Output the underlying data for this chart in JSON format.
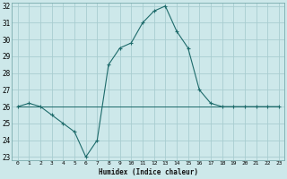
{
  "xlabel": "Humidex (Indice chaleur)",
  "background_color": "#cde8ea",
  "grid_color": "#a8cdd0",
  "line_color": "#1e6b6b",
  "hours": [
    0,
    1,
    2,
    3,
    4,
    5,
    6,
    7,
    8,
    9,
    10,
    11,
    12,
    13,
    14,
    15,
    16,
    17,
    18,
    19,
    20,
    21,
    22,
    23
  ],
  "series_ref1": [
    26,
    26,
    26,
    26,
    26,
    26,
    26,
    26,
    26,
    26,
    26,
    26,
    26,
    26,
    26,
    26,
    26,
    26,
    26,
    26,
    26,
    26,
    26,
    26
  ],
  "series_ref2": [
    26,
    26,
    26,
    26,
    26,
    26,
    26,
    26,
    26,
    26,
    26,
    26,
    26,
    26,
    26,
    26,
    26,
    26,
    26,
    26,
    26,
    26,
    26,
    26
  ],
  "series_ref3": [
    26,
    26,
    26,
    26,
    26,
    26,
    26,
    26,
    26,
    26,
    26,
    26,
    26,
    26,
    26,
    26,
    26,
    26,
    26,
    26,
    26,
    26,
    26,
    26
  ],
  "series_main": [
    26,
    26.2,
    26,
    25.5,
    25,
    24.5,
    23,
    24,
    28.5,
    29.5,
    29.8,
    31,
    31.7,
    32,
    30.5,
    29.5,
    27,
    26.2,
    26,
    26,
    26,
    26,
    26,
    26
  ],
  "ylim": [
    22.8,
    32.2
  ],
  "yticks": [
    23,
    24,
    25,
    26,
    27,
    28,
    29,
    30,
    31,
    32
  ],
  "xticks": [
    0,
    1,
    2,
    3,
    4,
    5,
    6,
    7,
    8,
    9,
    10,
    11,
    12,
    13,
    14,
    15,
    16,
    17,
    18,
    19,
    20,
    21,
    22,
    23
  ]
}
